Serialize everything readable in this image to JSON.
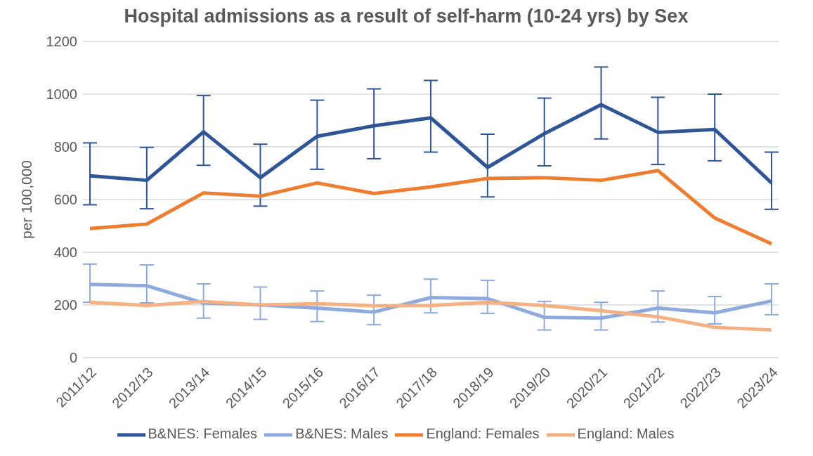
{
  "chart_data": {
    "type": "line",
    "title": "Hospital admissions as a result of self-harm (10-24 yrs) by Sex",
    "ylabel": "per 100,000",
    "categories": [
      "2011/12",
      "2012/13",
      "2013/14",
      "2014/15",
      "2015/16",
      "2016/17",
      "2017/18",
      "2018/19",
      "2019/20",
      "2020/21",
      "2021/22",
      "2022/23",
      "2023/24"
    ],
    "series": [
      {
        "name": "B&NES: Females",
        "color": "#2f5597",
        "values": [
          690,
          673,
          857,
          683,
          840,
          880,
          910,
          722,
          850,
          960,
          855,
          866,
          663
        ],
        "errors": [
          [
            580,
            815
          ],
          [
            565,
            798
          ],
          [
            730,
            995
          ],
          [
            575,
            810
          ],
          [
            715,
            977
          ],
          [
            755,
            1020
          ],
          [
            780,
            1052
          ],
          [
            610,
            848
          ],
          [
            728,
            985
          ],
          [
            830,
            1103
          ],
          [
            733,
            988
          ],
          [
            747,
            1000
          ],
          [
            563,
            780
          ]
        ]
      },
      {
        "name": "B&NES: Males",
        "color": "#8faadc",
        "values": [
          278,
          273,
          207,
          200,
          188,
          173,
          228,
          224,
          153,
          150,
          188,
          170,
          215
        ],
        "errors": [
          [
            210,
            355
          ],
          [
            208,
            352
          ],
          [
            150,
            280
          ],
          [
            145,
            268
          ],
          [
            137,
            253
          ],
          [
            125,
            237
          ],
          [
            170,
            298
          ],
          [
            168,
            293
          ],
          [
            105,
            213
          ],
          [
            105,
            210
          ],
          [
            135,
            253
          ],
          [
            128,
            232
          ],
          [
            163,
            280
          ]
        ]
      },
      {
        "name": "England: Females",
        "color": "#ed7d31",
        "values": [
          490,
          507,
          625,
          613,
          663,
          623,
          648,
          680,
          683,
          673,
          710,
          530,
          432
        ]
      },
      {
        "name": "England: Males",
        "color": "#f4b183",
        "values": [
          210,
          198,
          213,
          200,
          205,
          197,
          198,
          210,
          198,
          178,
          155,
          115,
          105
        ]
      }
    ],
    "ylim": [
      0,
      1200
    ],
    "yticks": [
      0,
      200,
      400,
      600,
      800,
      1000,
      1200
    ],
    "grid": "y",
    "legend": "bottom",
    "marker": "none",
    "line_style": "solid"
  }
}
